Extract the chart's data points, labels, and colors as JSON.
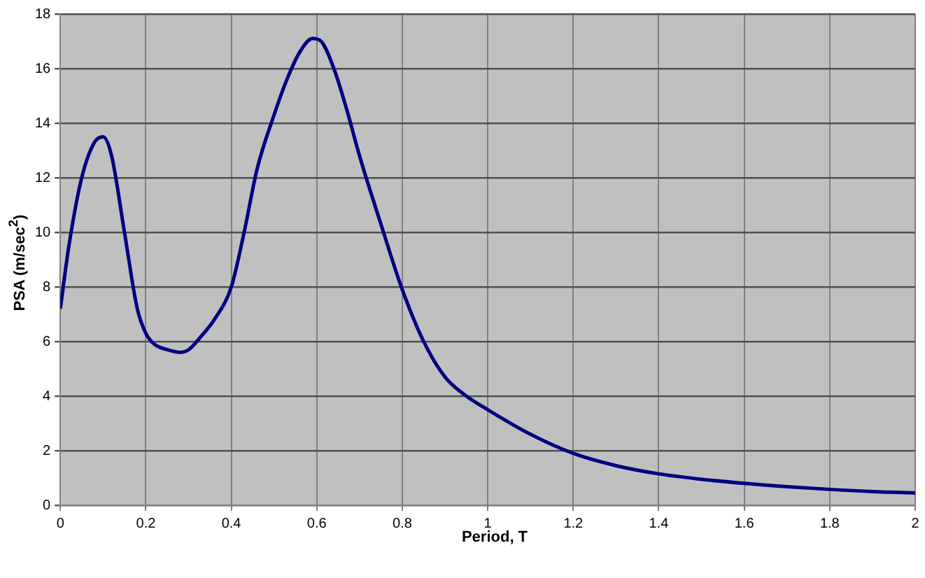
{
  "chart_data": {
    "type": "line",
    "xlabel": "Period, T",
    "ylabel": "PSA (m/sec$^{2}$)",
    "x": [
      0,
      0.02,
      0.05,
      0.08,
      0.1,
      0.12,
      0.15,
      0.18,
      0.2,
      0.22,
      0.25,
      0.28,
      0.3,
      0.33,
      0.36,
      0.4,
      0.43,
      0.46,
      0.5,
      0.53,
      0.56,
      0.59,
      0.61,
      0.64,
      0.67,
      0.7,
      0.75,
      0.8,
      0.85,
      0.9,
      0.95,
      1.0,
      1.1,
      1.2,
      1.3,
      1.4,
      1.5,
      1.6,
      1.7,
      1.8,
      1.9,
      2.0
    ],
    "series": [
      {
        "color": "#000080",
        "values": [
          7.2,
          9.5,
          12.0,
          13.3,
          13.5,
          12.8,
          10.0,
          7.2,
          6.3,
          5.9,
          5.7,
          5.6,
          5.7,
          6.2,
          6.8,
          8.0,
          10.0,
          12.3,
          14.3,
          15.6,
          16.6,
          17.1,
          17.0,
          16.0,
          14.5,
          12.8,
          10.3,
          7.9,
          6.0,
          4.7,
          4.0,
          3.5,
          2.6,
          1.9,
          1.45,
          1.15,
          0.95,
          0.8,
          0.68,
          0.58,
          0.5,
          0.45
        ]
      }
    ],
    "xlim": [
      0,
      2
    ],
    "xticks": [
      0,
      0.2,
      0.4,
      0.6,
      0.8,
      1,
      1.2,
      1.4,
      1.6,
      1.8,
      2
    ],
    "ylim": [
      0,
      18
    ],
    "yticks": [
      0,
      2,
      4,
      6,
      8,
      10,
      12,
      14,
      16,
      18
    ],
    "grid": true,
    "legend": false,
    "marker": "none",
    "line_style": "solid"
  }
}
